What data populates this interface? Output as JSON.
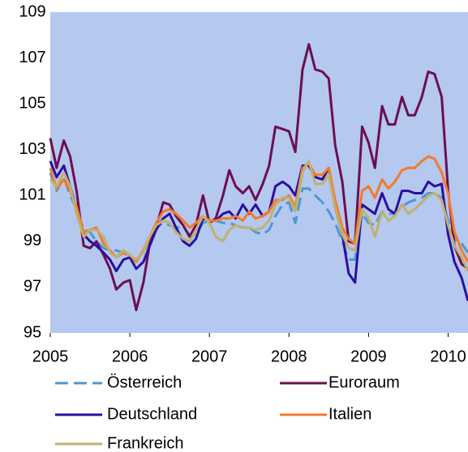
{
  "chart_data": {
    "type": "line",
    "x": [
      2005,
      2005.08,
      2005.17,
      2005.25,
      2005.33,
      2005.42,
      2005.5,
      2005.58,
      2005.67,
      2005.75,
      2005.83,
      2005.92,
      2006,
      2006.08,
      2006.17,
      2006.25,
      2006.33,
      2006.42,
      2006.5,
      2006.58,
      2006.67,
      2006.75,
      2006.83,
      2006.92,
      2007,
      2007.08,
      2007.17,
      2007.25,
      2007.33,
      2007.42,
      2007.5,
      2007.58,
      2007.67,
      2007.75,
      2007.83,
      2007.92,
      2008,
      2008.08,
      2008.17,
      2008.25,
      2008.33,
      2008.42,
      2008.5,
      2008.58,
      2008.67,
      2008.75,
      2008.83,
      2008.92,
      2009,
      2009.08,
      2009.17,
      2009.25,
      2009.33,
      2009.42,
      2009.5,
      2009.58,
      2009.67,
      2009.75,
      2009.83,
      2009.92,
      2010,
      2010.08,
      2010.17,
      2010.25
    ],
    "xlim": [
      2005,
      2010.25
    ],
    "xticks": [
      2005,
      2006,
      2007,
      2008,
      2009,
      2010
    ],
    "ylim": [
      95,
      109
    ],
    "yticks": [
      95,
      97,
      99,
      101,
      103,
      105,
      107,
      109
    ],
    "background": "#b4c8f0",
    "series": [
      {
        "name": "Österreich",
        "color": "#4f97d3",
        "dashed": true,
        "values": [
          102,
          101.2,
          101.8,
          101.0,
          100.4,
          99.5,
          99.4,
          99.0,
          98.7,
          98.6,
          98.6,
          98.5,
          98.3,
          98.2,
          98.5,
          99.0,
          99.6,
          99.8,
          99.7,
          99.6,
          99.6,
          99.3,
          99.3,
          99.8,
          99.9,
          99.9,
          99.8,
          99.8,
          99.7,
          99.6,
          99.6,
          99.4,
          99.3,
          99.5,
          100.1,
          100.6,
          100.7,
          99.8,
          101.3,
          101.3,
          101.0,
          100.7,
          100.3,
          99.8,
          99.0,
          98.2,
          98.2,
          100.2,
          99.8,
          99.7,
          100.3,
          100.2,
          100.2,
          100.5,
          100.7,
          100.8,
          100.9,
          101.1,
          101.1,
          100.9,
          99.9,
          99.1,
          98.9,
          98.5
        ]
      },
      {
        "name": "Euroraum",
        "color": "#6b0f4f",
        "values": [
          103.5,
          102.2,
          103.4,
          102.7,
          101.2,
          98.8,
          98.7,
          99.0,
          98.4,
          97.8,
          96.9,
          97.2,
          97.3,
          96.0,
          97.2,
          98.9,
          99.6,
          100.7,
          100.6,
          100.1,
          99.7,
          99.2,
          99.7,
          101.0,
          99.8,
          100.0,
          101.0,
          102.1,
          101.4,
          101.1,
          101.4,
          100.8,
          101.5,
          102.3,
          104.0,
          103.9,
          103.8,
          102.9,
          106.5,
          107.6,
          106.5,
          106.4,
          106.1,
          103.2,
          101.6,
          99.0,
          98.9,
          104.0,
          103.3,
          102.2,
          104.9,
          104.1,
          104.1,
          105.3,
          104.5,
          104.5,
          105.3,
          106.4,
          106.3,
          105.3,
          101.2,
          98.8,
          98.0,
          97.8
        ]
      },
      {
        "name": "Deutschland",
        "color": "#2a0fa0",
        "values": [
          102.5,
          101.8,
          102.3,
          101.4,
          100.4,
          99.3,
          99.0,
          98.8,
          98.5,
          98.2,
          97.7,
          98.2,
          98.3,
          97.8,
          98.1,
          98.8,
          99.5,
          100.0,
          100.2,
          99.6,
          99.0,
          98.8,
          99.1,
          100.0,
          99.9,
          99.9,
          100.2,
          100.3,
          100.0,
          100.6,
          100.2,
          100.6,
          100.1,
          100.3,
          101.4,
          101.6,
          101.4,
          101.0,
          102.3,
          102.3,
          101.8,
          101.7,
          102.2,
          100.5,
          99.3,
          97.6,
          97.2,
          100.6,
          100.4,
          100.2,
          101.1,
          100.4,
          100.2,
          101.2,
          101.2,
          101.1,
          101.1,
          101.6,
          101.4,
          101.5,
          99.3,
          98.1,
          97.4,
          96.4
        ]
      },
      {
        "name": "Italien",
        "color": "#f47a2a",
        "values": [
          102.2,
          101.3,
          101.7,
          101.2,
          100.5,
          99.4,
          99.5,
          99.6,
          98.9,
          98.6,
          98.3,
          98.5,
          98.4,
          98.1,
          98.6,
          99.2,
          99.8,
          100.3,
          100.4,
          100.2,
          99.9,
          99.6,
          99.8,
          100.1,
          99.9,
          99.9,
          100.0,
          100.0,
          100.1,
          99.9,
          100.3,
          100.0,
          100.1,
          100.3,
          100.8,
          100.8,
          101.0,
          100.5,
          102.2,
          102.4,
          101.9,
          101.9,
          102.2,
          100.8,
          99.6,
          99.1,
          98.9,
          101.2,
          101.4,
          100.9,
          101.7,
          101.3,
          101.6,
          102.1,
          102.2,
          102.2,
          102.5,
          102.7,
          102.6,
          102.0,
          101.1,
          99.4,
          98.6,
          98.1
        ]
      },
      {
        "name": "Frankreich",
        "color": "#c0b16d",
        "values": [
          101.7,
          101.4,
          102.0,
          101.4,
          100.2,
          99.2,
          99.5,
          99.5,
          99.2,
          98.5,
          98.3,
          98.6,
          98.4,
          98.2,
          98.5,
          99.2,
          99.7,
          99.9,
          99.8,
          99.4,
          99.1,
          99.0,
          99.5,
          100.1,
          99.8,
          99.2,
          99.0,
          99.5,
          99.7,
          99.6,
          99.6,
          99.5,
          99.6,
          99.9,
          100.6,
          100.9,
          100.9,
          100.3,
          102.0,
          102.5,
          101.5,
          101.5,
          101.9,
          100.5,
          99.3,
          98.7,
          98.6,
          100.4,
          100.0,
          99.2,
          100.3,
          99.9,
          100.1,
          100.6,
          100.2,
          100.4,
          100.7,
          101.0,
          101.1,
          100.8,
          99.7,
          98.8,
          98.3,
          97.7
        ]
      }
    ]
  }
}
